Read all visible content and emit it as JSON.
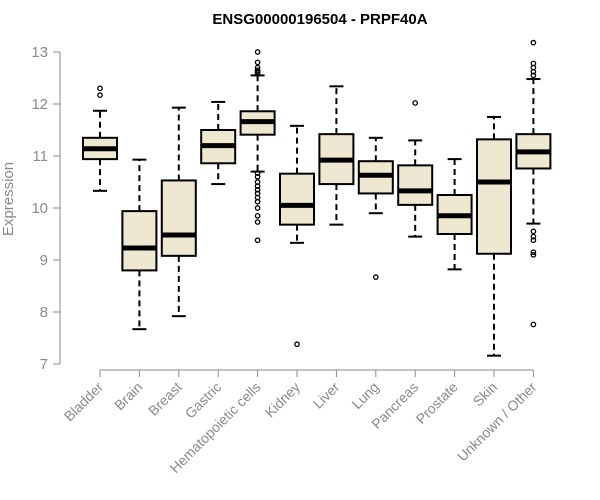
{
  "chart_data": {
    "type": "boxplot",
    "title": "ENSG00000196504 - PRPF40A",
    "xlabel": "",
    "ylabel": "Expression",
    "ylim": [
      7,
      13
    ],
    "yticks": [
      7,
      8,
      9,
      10,
      11,
      12,
      13
    ],
    "grid": false,
    "legend": "none",
    "box_fill": "#efe8d0",
    "box_stroke": "#000000",
    "categories": [
      "Bladder",
      "Brain",
      "Breast",
      "Gastric",
      "Hematopoietic cells",
      "Kidney",
      "Liver",
      "Lung",
      "Pancreas",
      "Prostate",
      "Skin",
      "Unknown / Other"
    ],
    "boxes": [
      {
        "min": 10.33,
        "q1": 10.94,
        "median": 11.14,
        "q3": 11.35,
        "max": 11.87,
        "outliers": [
          12.17,
          12.3
        ]
      },
      {
        "min": 7.67,
        "q1": 8.8,
        "median": 9.23,
        "q3": 9.94,
        "max": 10.93,
        "outliers": []
      },
      {
        "min": 7.92,
        "q1": 9.08,
        "median": 9.48,
        "q3": 10.53,
        "max": 11.93,
        "outliers": []
      },
      {
        "min": 10.46,
        "q1": 10.86,
        "median": 11.2,
        "q3": 11.5,
        "max": 12.04,
        "outliers": []
      },
      {
        "min": 10.7,
        "q1": 11.41,
        "median": 11.66,
        "q3": 11.86,
        "max": 12.55,
        "outliers": [
          13.0,
          12.8,
          12.7,
          12.65,
          12.62,
          12.6,
          10.67,
          10.6,
          10.5,
          10.42,
          10.35,
          10.28,
          10.2,
          10.12,
          10.0,
          9.85,
          9.73,
          9.38
        ]
      },
      {
        "min": 9.33,
        "q1": 9.68,
        "median": 10.05,
        "q3": 10.66,
        "max": 11.58,
        "outliers": [
          7.38
        ]
      },
      {
        "min": 9.68,
        "q1": 10.46,
        "median": 10.92,
        "q3": 11.42,
        "max": 12.34,
        "outliers": []
      },
      {
        "min": 9.9,
        "q1": 10.28,
        "median": 10.63,
        "q3": 10.9,
        "max": 11.35,
        "outliers": [
          8.67
        ]
      },
      {
        "min": 9.45,
        "q1": 10.06,
        "median": 10.33,
        "q3": 10.82,
        "max": 11.3,
        "outliers": [
          12.02
        ]
      },
      {
        "min": 8.82,
        "q1": 9.5,
        "median": 9.85,
        "q3": 10.25,
        "max": 10.94,
        "outliers": []
      },
      {
        "min": 7.16,
        "q1": 9.12,
        "median": 10.5,
        "q3": 11.32,
        "max": 11.75,
        "outliers": []
      },
      {
        "min": 9.7,
        "q1": 10.76,
        "median": 11.08,
        "q3": 11.42,
        "max": 12.48,
        "outliers": [
          13.18,
          12.78,
          12.7,
          12.62,
          12.55,
          9.55,
          9.45,
          9.38,
          9.15,
          9.1,
          7.76
        ]
      }
    ]
  }
}
